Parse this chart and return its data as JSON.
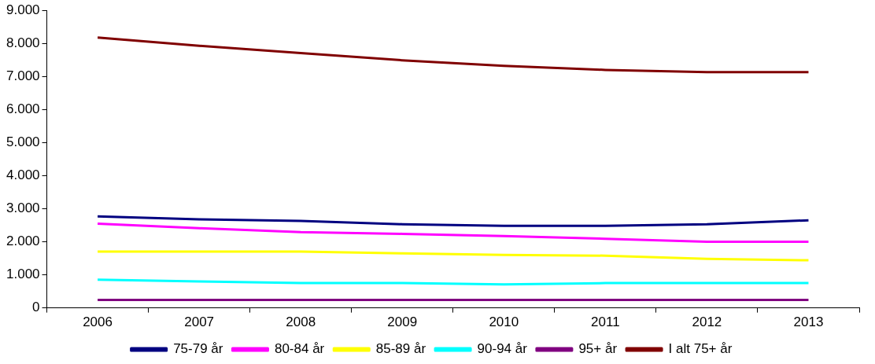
{
  "chart_data": {
    "type": "line",
    "categories": [
      "2006",
      "2007",
      "2008",
      "2009",
      "2010",
      "2011",
      "2012",
      "2013"
    ],
    "series": [
      {
        "name": "75-79 år",
        "color": "#000080",
        "values": [
          2770,
          2680,
          2630,
          2530,
          2480,
          2480,
          2530,
          2650
        ]
      },
      {
        "name": "80-84 år",
        "color": "#ff00ff",
        "values": [
          2550,
          2410,
          2290,
          2240,
          2170,
          2090,
          2000,
          2000
        ]
      },
      {
        "name": "85-89 år",
        "color": "#ffff00",
        "values": [
          1700,
          1700,
          1700,
          1650,
          1600,
          1580,
          1480,
          1440
        ]
      },
      {
        "name": "90-94 år",
        "color": "#00ffff",
        "values": [
          850,
          800,
          750,
          750,
          710,
          750,
          750,
          750
        ]
      },
      {
        "name": "95+ år",
        "color": "#800080",
        "values": [
          240,
          240,
          240,
          240,
          240,
          240,
          240,
          240
        ]
      },
      {
        "name": "I alt 75+ år",
        "color": "#800000",
        "values": [
          8180,
          7930,
          7710,
          7490,
          7320,
          7200,
          7130,
          7130
        ]
      }
    ],
    "ylim": [
      0,
      9000
    ],
    "yticks": [
      {
        "value": 0,
        "label": "0"
      },
      {
        "value": 1000,
        "label": "1.000"
      },
      {
        "value": 2000,
        "label": "2.000"
      },
      {
        "value": 3000,
        "label": "3.000"
      },
      {
        "value": 4000,
        "label": "4.000"
      },
      {
        "value": 5000,
        "label": "5.000"
      },
      {
        "value": 6000,
        "label": "6.000"
      },
      {
        "value": 7000,
        "label": "7.000"
      },
      {
        "value": 8000,
        "label": "8.000"
      },
      {
        "value": 9000,
        "label": "9.000"
      }
    ],
    "grid": false,
    "legend": "bottom",
    "marker": "none",
    "line_style": "solid"
  }
}
